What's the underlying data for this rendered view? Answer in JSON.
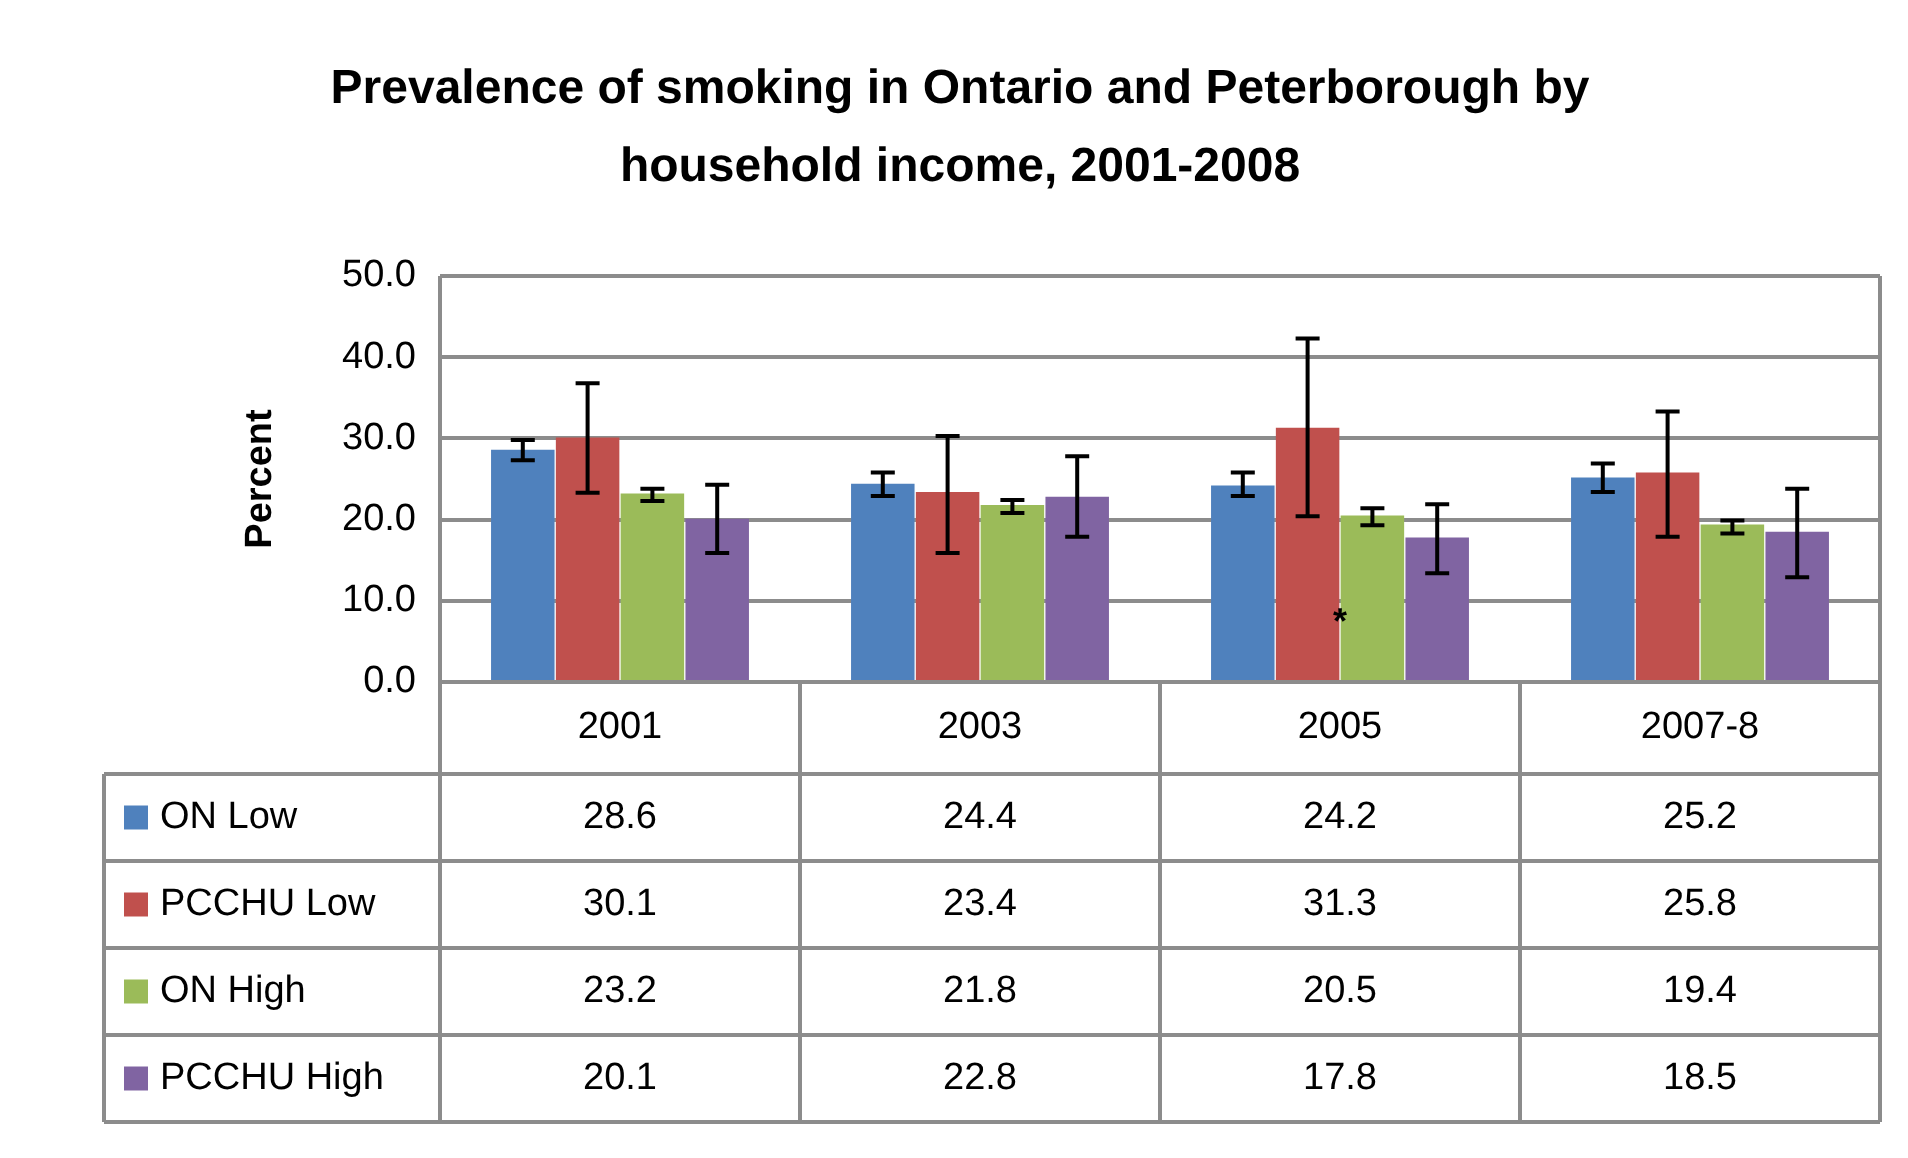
{
  "chart_data": {
    "type": "bar",
    "title": "Prevalence of smoking in Ontario and Peterborough by household income, 2001-2008",
    "ylabel": "Percent",
    "categories": [
      "2001",
      "2003",
      "2005",
      "2007-8"
    ],
    "series": [
      {
        "name": "ON Low",
        "color": "#4f81bd",
        "values": [
          28.6,
          24.4,
          24.2,
          25.2
        ],
        "errors": [
          [
            27.3,
            29.8
          ],
          [
            22.9,
            25.8
          ],
          [
            22.9,
            25.8
          ],
          [
            23.4,
            26.9
          ]
        ]
      },
      {
        "name": "PCCHU Low",
        "color": "#c0504d",
        "values": [
          30.1,
          23.4,
          31.3,
          25.8
        ],
        "errors": [
          [
            23.3,
            36.8
          ],
          [
            15.9,
            30.3
          ],
          [
            20.4,
            42.3
          ],
          [
            17.9,
            33.3
          ]
        ]
      },
      {
        "name": "ON High",
        "color": "#9bbb59",
        "values": [
          23.2,
          21.8,
          20.5,
          19.4
        ],
        "errors": [
          [
            22.3,
            23.8
          ],
          [
            20.8,
            22.4
          ],
          [
            19.3,
            21.4
          ],
          [
            18.3,
            19.9
          ]
        ]
      },
      {
        "name": "PCCHU High",
        "color": "#8064a2",
        "values": [
          20.1,
          22.8,
          17.8,
          18.5
        ],
        "errors": [
          [
            15.9,
            24.3
          ],
          [
            17.9,
            27.8
          ],
          [
            13.4,
            21.9
          ],
          [
            12.9,
            23.8
          ]
        ]
      }
    ],
    "ylim": [
      0,
      50
    ],
    "yticks": [
      {
        "value": 0,
        "label": "0.0"
      },
      {
        "value": 10,
        "label": "10.0"
      },
      {
        "value": 20,
        "label": "20.0"
      },
      {
        "value": 30,
        "label": "30.0"
      },
      {
        "value": 40,
        "label": "40.0"
      },
      {
        "value": 50,
        "label": "50.0"
      }
    ],
    "grid": "y",
    "legend": "bottom",
    "data_labels": true,
    "annotations": [
      {
        "text": "*",
        "x": "2005",
        "y": 7.3
      }
    ]
  }
}
